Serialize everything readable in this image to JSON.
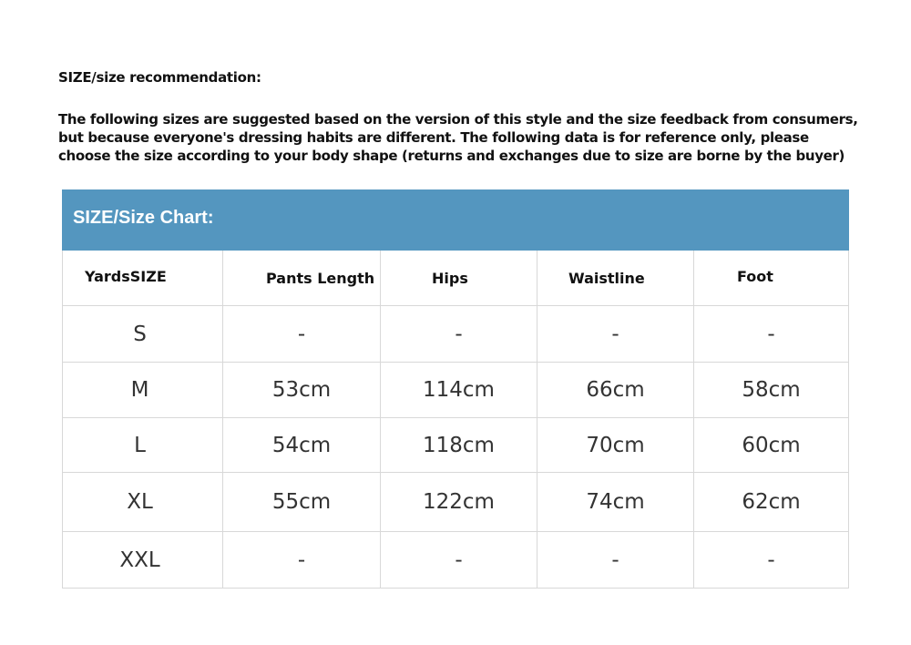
{
  "recommendation": {
    "title": "SIZE/size recommendation:",
    "lines": [
      "The following sizes are suggested based on the version of this style and the size feedback from consumers,",
      "but because everyone's dressing habits are different. The following data is for reference only, please",
      "choose the size according to your body shape (returns and exchanges due to size are borne by the buyer)"
    ]
  },
  "chart": {
    "title": "SIZE/Size Chart:",
    "header_color": "#5496bf",
    "columns": [
      "YardsSIZE",
      "Pants Length",
      "Hips",
      "Waistline",
      "Foot"
    ],
    "rows": [
      [
        "S",
        "-",
        "-",
        "-",
        "-"
      ],
      [
        "M",
        "53cm",
        "114cm",
        "66cm",
        "58cm"
      ],
      [
        "L",
        "54cm",
        "118cm",
        "70cm",
        "60cm"
      ],
      [
        "XL",
        "55cm",
        "122cm",
        "74cm",
        "62cm"
      ],
      [
        "XXL",
        "-",
        "-",
        "-",
        "-"
      ]
    ]
  }
}
